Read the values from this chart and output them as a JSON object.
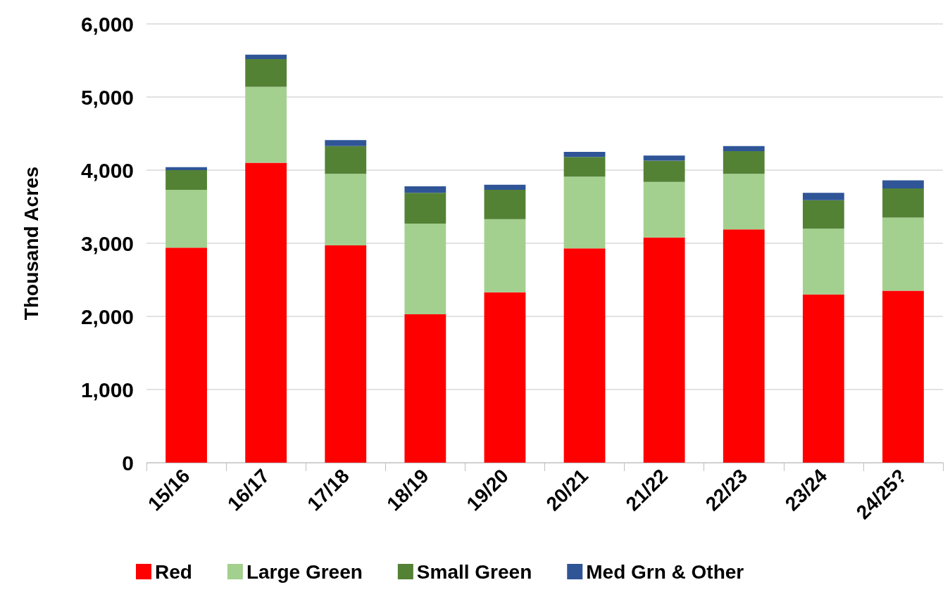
{
  "chart_data": {
    "type": "bar",
    "stacked": true,
    "ylabel": "Thousand Acres",
    "categories": [
      "15/16",
      "16/17",
      "17/18",
      "18/19",
      "19/20",
      "20/21",
      "21/22",
      "22/23",
      "23/24",
      "24/25?"
    ],
    "series": [
      {
        "name": "Red",
        "color": "#ff0000",
        "values": [
          2940,
          4100,
          2970,
          2030,
          2330,
          2930,
          3080,
          3190,
          2300,
          2350
        ]
      },
      {
        "name": "Large Green",
        "color": "#a3d08f",
        "values": [
          790,
          1040,
          980,
          1240,
          1000,
          980,
          760,
          760,
          900,
          1000
        ]
      },
      {
        "name": "Small Green",
        "color": "#548235",
        "values": [
          270,
          380,
          380,
          420,
          400,
          270,
          290,
          310,
          390,
          400
        ]
      },
      {
        "name": "Med Grn & Other",
        "color": "#2f5597",
        "values": [
          40,
          60,
          80,
          90,
          70,
          70,
          70,
          70,
          100,
          110
        ]
      }
    ],
    "ylim": [
      0,
      6000
    ],
    "yticks": [
      0,
      {
        "value": 1000,
        "label": "1,000"
      },
      {
        "value": 2000,
        "label": "2,000"
      },
      {
        "value": 3000,
        "label": "3,000"
      },
      {
        "value": 4000,
        "label": "4,000"
      },
      {
        "value": 5000,
        "label": "5,000"
      },
      {
        "value": 6000,
        "label": "6,000"
      }
    ],
    "grid": "y",
    "legend": "bottom"
  }
}
